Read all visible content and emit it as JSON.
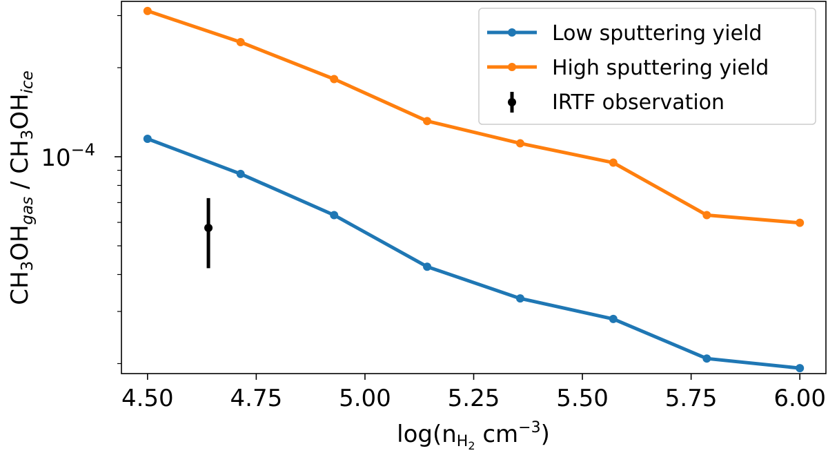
{
  "chart_data": {
    "type": "line",
    "title": "",
    "xlabel": {
      "prefix": "log(n",
      "sub1": "H",
      "sub2": "2",
      "suffix": " cm",
      "exp": "−3",
      "close": ")"
    },
    "ylabel": {
      "a": "CH",
      "a_sub": "3",
      "b": "OH",
      "b_sub": "gas",
      "sep": " / CH",
      "c_sub": "3",
      "d": "OH",
      "d_sub": "ice"
    },
    "x_ticks": [
      4.5,
      4.75,
      5.0,
      5.25,
      5.5,
      5.75,
      6.0
    ],
    "x_tick_labels": [
      "4.50",
      "4.75",
      "5.00",
      "5.25",
      "5.50",
      "5.75",
      "6.00"
    ],
    "xlim": [
      4.44,
      6.06
    ],
    "yscale": "log",
    "ylim": [
      1.85e-05,
      0.000335
    ],
    "y_major_tick": {
      "value": 0.0001,
      "base": "10",
      "exp": "−4"
    },
    "y_minor_ticks": [
      2e-05,
      3e-05,
      4e-05,
      5e-05,
      6e-05,
      7e-05,
      8e-05,
      9e-05,
      0.0002,
      0.0003
    ],
    "series": [
      {
        "name": "Low sputtering yield",
        "color": "#1f77b4",
        "x": [
          4.5,
          4.714,
          4.929,
          5.143,
          5.357,
          5.571,
          5.786,
          6.0
        ],
        "y": [
          0.000115,
          8.75e-05,
          6.35e-05,
          4.25e-05,
          3.32e-05,
          2.83e-05,
          2.08e-05,
          1.93e-05
        ]
      },
      {
        "name": "High sputtering yield",
        "color": "#ff7f0e",
        "x": [
          4.5,
          4.714,
          4.929,
          5.143,
          5.357,
          5.571,
          5.786,
          6.0
        ],
        "y": [
          0.000311,
          0.000244,
          0.000183,
          0.000132,
          0.000111,
          9.55e-05,
          6.35e-05,
          5.98e-05
        ]
      }
    ],
    "errorbar": {
      "name": "IRTF observation",
      "color": "#000000",
      "x": 4.64,
      "y": 5.75e-05,
      "ylow": 4.2e-05,
      "yhigh": 7.25e-05
    },
    "legend": {
      "position": "top-right",
      "entries": [
        "Low sputtering yield",
        "High sputtering yield",
        "IRTF observation"
      ]
    }
  }
}
